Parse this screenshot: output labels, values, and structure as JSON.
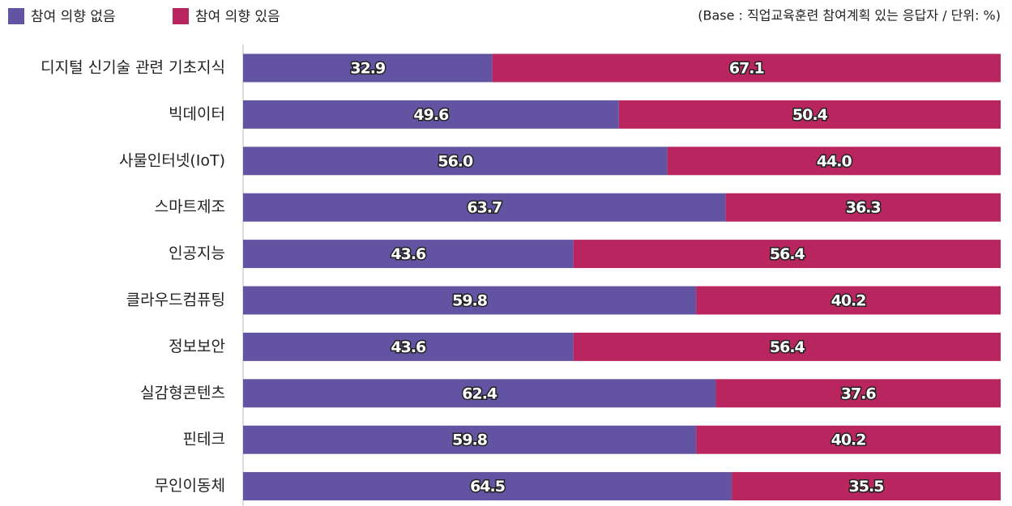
{
  "chart_data": {
    "type": "stacked-bar-horizontal",
    "annotation": "(Base : 직업교육훈련 참여계획 있는 응답자 / 단위: %)",
    "categories": [
      "디지털 신기술 관련 기초지식",
      "빅데이터",
      "사물인터넷(IoT)",
      "스마트제조",
      "인공지능",
      "클라우드컴퓨팅",
      "정보보안",
      "실감형콘텐츠",
      "핀테크",
      "무인이동체"
    ],
    "series": [
      {
        "name": "참여 의향 없음",
        "color": "#6354a3",
        "values": [
          32.9,
          49.6,
          56.0,
          63.7,
          43.6,
          59.8,
          43.6,
          62.4,
          59.8,
          64.5
        ],
        "value_labels": [
          "32.9",
          "49.6",
          "56.0",
          "63.7",
          "43.6",
          "59.8",
          "43.6",
          "62.4",
          "59.8",
          "64.5"
        ]
      },
      {
        "name": "참여 의향 있음",
        "color": "#b8255f",
        "values": [
          67.1,
          50.4,
          44.0,
          36.3,
          56.4,
          40.2,
          56.4,
          37.6,
          40.2,
          35.5
        ],
        "value_labels": [
          "67.1",
          "50.4",
          "44.0",
          "36.3",
          "56.4",
          "40.2",
          "56.4",
          "37.6",
          "40.2",
          "35.5"
        ]
      }
    ],
    "xlim": [
      0,
      100
    ],
    "legend": "top-left"
  }
}
